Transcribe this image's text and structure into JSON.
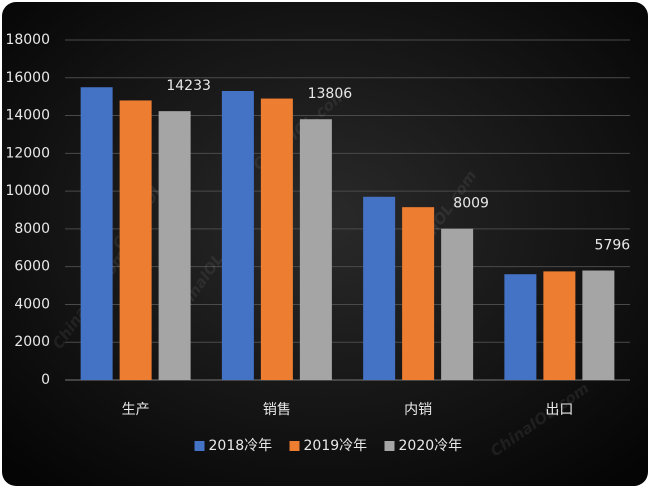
{
  "chart_data": {
    "type": "bar",
    "categories": [
      "生产",
      "销售",
      "内销",
      "出口"
    ],
    "series": [
      {
        "name": "2018冷年",
        "color": "#4472c4",
        "values": [
          15500,
          15300,
          9700,
          5600
        ]
      },
      {
        "name": "2019冷年",
        "color": "#ed7d31",
        "values": [
          14800,
          14900,
          9150,
          5750
        ]
      },
      {
        "name": "2020冷年",
        "color": "#a5a5a5",
        "values": [
          14233,
          13806,
          8009,
          5796
        ],
        "show_values": true
      }
    ],
    "ylim": [
      0,
      18000
    ],
    "yticks": [
      0,
      2000,
      4000,
      6000,
      8000,
      10000,
      12000,
      14000,
      16000,
      18000
    ],
    "grid": true,
    "legend": "bottom",
    "watermark": "ChinaIOL.com"
  }
}
